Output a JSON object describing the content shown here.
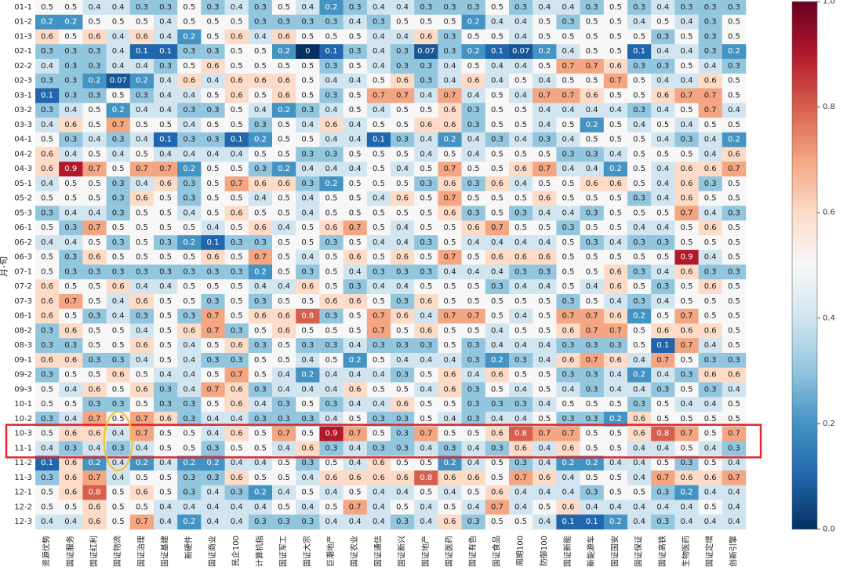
{
  "chart_data": {
    "type": "heatmap",
    "ylabel": "月-旬",
    "xlabel": "",
    "rows": [
      "01-1",
      "01-2",
      "01-3",
      "02-1",
      "02-2",
      "02-3",
      "03-1",
      "03-2",
      "03-3",
      "04-1",
      "04-2",
      "04-3",
      "05-1",
      "05-2",
      "05-3",
      "06-1",
      "06-2",
      "06-3",
      "07-1",
      "07-2",
      "07-3",
      "08-1",
      "08-2",
      "08-3",
      "09-1",
      "09-2",
      "09-3",
      "10-1",
      "10-2",
      "10-3",
      "11-1",
      "11-2",
      "11-3",
      "12-1",
      "12-2",
      "12-3"
    ],
    "columns": [
      "资源优势",
      "国证服务",
      "国证红利",
      "国证物流",
      "国证治理",
      "国证基建",
      "新硬件",
      "国证商业",
      "民企100",
      "计算机指",
      "国证军工",
      "国证大宗",
      "巨潮地产",
      "国证农业",
      "国证通信",
      "国证新兴",
      "国证地产",
      "国证医药",
      "国证有色",
      "国证食品",
      "周期100",
      "防御100",
      "国证新能",
      "新能源车",
      "国证国安",
      "国证保证",
      "国证高铁",
      "生物医药",
      "国证定增",
      "创新引擎"
    ],
    "values": [
      [
        0.5,
        0.5,
        0.4,
        0.4,
        0.3,
        0.3,
        0.5,
        0.3,
        0.4,
        0.3,
        0.5,
        0.4,
        0.2,
        0.3,
        0.4,
        0.4,
        0.3,
        0.3,
        0.3,
        0.5,
        0.3,
        0.4,
        0.4,
        0.3,
        0.5,
        0.3,
        0.4,
        0.3,
        0.3,
        0.3
      ],
      [
        0.2,
        0.2,
        0.5,
        0.5,
        0.5,
        0.4,
        0.5,
        0.5,
        0.5,
        0.3,
        0.3,
        0.3,
        0.3,
        0.4,
        0.3,
        0.5,
        0.5,
        0.5,
        0.2,
        0.4,
        0.4,
        0.5,
        0.3,
        0.5,
        0.5,
        0.4,
        0.5,
        0.4,
        0.3,
        0.5
      ],
      [
        0.6,
        0.5,
        0.6,
        0.4,
        0.6,
        0.4,
        0.2,
        0.5,
        0.6,
        0.4,
        0.6,
        0.5,
        0.5,
        0.5,
        0.4,
        0.4,
        0.6,
        0.3,
        0.5,
        0.5,
        0.4,
        0.5,
        0.5,
        0.5,
        0.5,
        0.5,
        0.3,
        0.5,
        0.3,
        0.5
      ],
      [
        0.3,
        0.3,
        0.3,
        0.4,
        0.1,
        0.1,
        0.3,
        0.3,
        0.5,
        0.5,
        0.2,
        0.0,
        0.1,
        0.3,
        0.4,
        0.3,
        0.07,
        0.3,
        0.2,
        0.1,
        0.07,
        0.2,
        0.4,
        0.5,
        0.5,
        0.1,
        0.4,
        0.4,
        0.3,
        0.2
      ],
      [
        0.4,
        0.3,
        0.3,
        0.4,
        0.4,
        0.3,
        0.5,
        0.6,
        0.5,
        0.5,
        0.5,
        0.5,
        0.3,
        0.5,
        0.4,
        0.3,
        0.3,
        0.4,
        0.5,
        0.4,
        0.4,
        0.5,
        0.7,
        0.7,
        0.6,
        0.3,
        0.3,
        0.5,
        0.4,
        0.3
      ],
      [
        0.3,
        0.3,
        0.2,
        0.07,
        0.2,
        0.4,
        0.6,
        0.4,
        0.6,
        0.6,
        0.6,
        0.5,
        0.4,
        0.4,
        0.5,
        0.6,
        0.3,
        0.4,
        0.6,
        0.4,
        0.5,
        0.4,
        0.5,
        0.5,
        0.7,
        0.5,
        0.4,
        0.4,
        0.6,
        0.5
      ],
      [
        0.1,
        0.3,
        0.3,
        0.5,
        0.3,
        0.4,
        0.4,
        0.5,
        0.6,
        0.5,
        0.6,
        0.5,
        0.3,
        0.5,
        0.7,
        0.7,
        0.4,
        0.7,
        0.4,
        0.5,
        0.4,
        0.7,
        0.7,
        0.6,
        0.5,
        0.5,
        0.6,
        0.7,
        0.7,
        0.5
      ],
      [
        0.3,
        0.4,
        0.5,
        0.2,
        0.4,
        0.4,
        0.3,
        0.3,
        0.5,
        0.4,
        0.2,
        0.3,
        0.4,
        0.5,
        0.4,
        0.5,
        0.5,
        0.6,
        0.3,
        0.5,
        0.5,
        0.4,
        0.4,
        0.4,
        0.4,
        0.3,
        0.4,
        0.5,
        0.7,
        0.4
      ],
      [
        0.4,
        0.6,
        0.5,
        0.7,
        0.5,
        0.5,
        0.4,
        0.5,
        0.5,
        0.3,
        0.5,
        0.4,
        0.6,
        0.4,
        0.5,
        0.5,
        0.6,
        0.6,
        0.3,
        0.5,
        0.5,
        0.4,
        0.5,
        0.2,
        0.5,
        0.4,
        0.5,
        0.4,
        0.5,
        0.5
      ],
      [
        0.5,
        0.3,
        0.4,
        0.3,
        0.4,
        0.1,
        0.3,
        0.3,
        0.1,
        0.2,
        0.5,
        0.5,
        0.4,
        0.4,
        0.1,
        0.3,
        0.4,
        0.2,
        0.4,
        0.3,
        0.4,
        0.3,
        0.4,
        0.5,
        0.5,
        0.5,
        0.4,
        0.3,
        0.4,
        0.2
      ],
      [
        0.6,
        0.4,
        0.5,
        0.4,
        0.5,
        0.4,
        0.4,
        0.4,
        0.4,
        0.5,
        0.5,
        0.3,
        0.3,
        0.5,
        0.5,
        0.5,
        0.4,
        0.5,
        0.4,
        0.5,
        0.5,
        0.5,
        0.3,
        0.3,
        0.4,
        0.5,
        0.5,
        0.5,
        0.4,
        0.6
      ],
      [
        0.6,
        0.9,
        0.7,
        0.5,
        0.7,
        0.7,
        0.2,
        0.5,
        0.5,
        0.3,
        0.2,
        0.4,
        0.4,
        0.4,
        0.5,
        0.4,
        0.5,
        0.7,
        0.5,
        0.5,
        0.6,
        0.7,
        0.4,
        0.4,
        0.2,
        0.5,
        0.4,
        0.6,
        0.6,
        0.7
      ],
      [
        0.4,
        0.5,
        0.5,
        0.3,
        0.4,
        0.6,
        0.3,
        0.5,
        0.7,
        0.6,
        0.6,
        0.3,
        0.2,
        0.5,
        0.5,
        0.5,
        0.3,
        0.6,
        0.3,
        0.6,
        0.4,
        0.5,
        0.5,
        0.6,
        0.6,
        0.5,
        0.4,
        0.6,
        0.3,
        0.5
      ],
      [
        0.5,
        0.5,
        0.5,
        0.3,
        0.6,
        0.5,
        0.3,
        0.5,
        0.5,
        0.4,
        0.5,
        0.4,
        0.5,
        0.5,
        0.4,
        0.6,
        0.5,
        0.7,
        0.5,
        0.5,
        0.5,
        0.6,
        0.5,
        0.5,
        0.5,
        0.3,
        0.4,
        0.6,
        0.5,
        0.5
      ],
      [
        0.3,
        0.4,
        0.4,
        0.3,
        0.5,
        0.5,
        0.4,
        0.5,
        0.6,
        0.5,
        0.5,
        0.4,
        0.5,
        0.5,
        0.5,
        0.5,
        0.5,
        0.6,
        0.3,
        0.5,
        0.3,
        0.4,
        0.4,
        0.3,
        0.5,
        0.5,
        0.5,
        0.7,
        0.4,
        0.3
      ],
      [
        0.5,
        0.3,
        0.7,
        0.5,
        0.5,
        0.5,
        0.5,
        0.4,
        0.5,
        0.6,
        0.4,
        0.5,
        0.6,
        0.7,
        0.5,
        0.4,
        0.5,
        0.5,
        0.6,
        0.7,
        0.5,
        0.5,
        0.3,
        0.5,
        0.5,
        0.4,
        0.4,
        0.5,
        0.6,
        0.5
      ],
      [
        0.4,
        0.4,
        0.5,
        0.3,
        0.5,
        0.3,
        0.2,
        0.1,
        0.3,
        0.3,
        0.5,
        0.5,
        0.3,
        0.5,
        0.4,
        0.4,
        0.3,
        0.5,
        0.4,
        0.4,
        0.4,
        0.4,
        0.5,
        0.3,
        0.4,
        0.3,
        0.3,
        0.5,
        0.5,
        0.5
      ],
      [
        0.5,
        0.3,
        0.6,
        0.5,
        0.5,
        0.5,
        0.5,
        0.6,
        0.5,
        0.7,
        0.5,
        0.4,
        0.5,
        0.6,
        0.5,
        0.6,
        0.5,
        0.7,
        0.5,
        0.6,
        0.6,
        0.6,
        0.5,
        0.5,
        0.5,
        0.5,
        0.5,
        0.9,
        0.4,
        0.5
      ],
      [
        0.5,
        0.3,
        0.3,
        0.3,
        0.3,
        0.3,
        0.3,
        0.3,
        0.3,
        0.2,
        0.5,
        0.3,
        0.5,
        0.4,
        0.3,
        0.3,
        0.3,
        0.4,
        0.4,
        0.4,
        0.3,
        0.3,
        0.5,
        0.5,
        0.6,
        0.3,
        0.4,
        0.6,
        0.3,
        0.3
      ],
      [
        0.6,
        0.5,
        0.5,
        0.6,
        0.4,
        0.4,
        0.5,
        0.5,
        0.5,
        0.4,
        0.4,
        0.6,
        0.5,
        0.3,
        0.4,
        0.4,
        0.5,
        0.5,
        0.5,
        0.3,
        0.4,
        0.4,
        0.5,
        0.4,
        0.6,
        0.5,
        0.3,
        0.5,
        0.6,
        0.5
      ],
      [
        0.6,
        0.7,
        0.5,
        0.4,
        0.6,
        0.5,
        0.5,
        0.3,
        0.5,
        0.3,
        0.5,
        0.5,
        0.6,
        0.6,
        0.5,
        0.3,
        0.6,
        0.5,
        0.5,
        0.5,
        0.5,
        0.5,
        0.3,
        0.5,
        0.4,
        0.3,
        0.4,
        0.5,
        0.5,
        0.5
      ],
      [
        0.6,
        0.5,
        0.3,
        0.4,
        0.3,
        0.5,
        0.3,
        0.7,
        0.5,
        0.6,
        0.6,
        0.8,
        0.3,
        0.5,
        0.7,
        0.6,
        0.4,
        0.7,
        0.7,
        0.5,
        0.4,
        0.5,
        0.7,
        0.7,
        0.6,
        0.2,
        0.5,
        0.7,
        0.5,
        0.5
      ],
      [
        0.3,
        0.6,
        0.5,
        0.5,
        0.4,
        0.5,
        0.6,
        0.7,
        0.3,
        0.5,
        0.6,
        0.5,
        0.5,
        0.5,
        0.7,
        0.5,
        0.6,
        0.5,
        0.5,
        0.4,
        0.5,
        0.5,
        0.6,
        0.7,
        0.7,
        0.5,
        0.6,
        0.6,
        0.6,
        0.5
      ],
      [
        0.3,
        0.3,
        0.5,
        0.5,
        0.6,
        0.5,
        0.4,
        0.5,
        0.6,
        0.3,
        0.5,
        0.3,
        0.3,
        0.4,
        0.3,
        0.3,
        0.3,
        0.5,
        0.3,
        0.4,
        0.4,
        0.4,
        0.3,
        0.3,
        0.3,
        0.5,
        0.1,
        0.7,
        0.4,
        0.5
      ],
      [
        0.6,
        0.6,
        0.3,
        0.3,
        0.4,
        0.5,
        0.4,
        0.3,
        0.3,
        0.5,
        0.5,
        0.4,
        0.5,
        0.2,
        0.5,
        0.4,
        0.4,
        0.4,
        0.3,
        0.2,
        0.3,
        0.4,
        0.6,
        0.7,
        0.6,
        0.4,
        0.7,
        0.5,
        0.3,
        0.3
      ],
      [
        0.3,
        0.5,
        0.5,
        0.6,
        0.5,
        0.4,
        0.4,
        0.5,
        0.7,
        0.5,
        0.4,
        0.2,
        0.4,
        0.4,
        0.4,
        0.3,
        0.5,
        0.6,
        0.4,
        0.6,
        0.5,
        0.5,
        0.3,
        0.3,
        0.4,
        0.2,
        0.4,
        0.3,
        0.6,
        0.6
      ],
      [
        0.5,
        0.4,
        0.6,
        0.5,
        0.6,
        0.3,
        0.4,
        0.7,
        0.6,
        0.3,
        0.4,
        0.4,
        0.4,
        0.6,
        0.5,
        0.5,
        0.4,
        0.6,
        0.3,
        0.5,
        0.4,
        0.5,
        0.4,
        0.3,
        0.4,
        0.4,
        0.3,
        0.5,
        0.3,
        0.4
      ],
      [
        0.5,
        0.5,
        0.3,
        0.3,
        0.5,
        0.3,
        0.3,
        0.5,
        0.6,
        0.4,
        0.3,
        0.5,
        0.3,
        0.4,
        0.4,
        0.6,
        0.5,
        0.5,
        0.3,
        0.3,
        0.3,
        0.4,
        0.5,
        0.5,
        0.5,
        0.3,
        0.5,
        0.4,
        0.4,
        0.5
      ],
      [
        0.3,
        0.4,
        0.7,
        0.5,
        0.7,
        0.6,
        0.3,
        0.4,
        0.4,
        0.3,
        0.3,
        0.3,
        0.4,
        0.5,
        0.3,
        0.3,
        0.5,
        0.4,
        0.3,
        0.4,
        0.4,
        0.5,
        0.3,
        0.3,
        0.2,
        0.6,
        0.5,
        0.5,
        0.5,
        0.5
      ],
      [
        0.5,
        0.6,
        0.6,
        0.4,
        0.7,
        0.5,
        0.5,
        0.4,
        0.6,
        0.5,
        0.7,
        0.5,
        0.9,
        0.7,
        0.5,
        0.3,
        0.7,
        0.5,
        0.5,
        0.6,
        0.8,
        0.7,
        0.7,
        0.5,
        0.5,
        0.6,
        0.8,
        0.7,
        0.5,
        0.7
      ],
      [
        0.4,
        0.3,
        0.4,
        0.3,
        0.4,
        0.5,
        0.5,
        0.3,
        0.5,
        0.5,
        0.4,
        0.6,
        0.3,
        0.4,
        0.3,
        0.3,
        0.4,
        0.3,
        0.4,
        0.3,
        0.6,
        0.4,
        0.6,
        0.5,
        0.5,
        0.4,
        0.4,
        0.5,
        0.4,
        0.3
      ],
      [
        0.1,
        0.6,
        0.2,
        0.4,
        0.2,
        0.4,
        0.2,
        0.2,
        0.4,
        0.4,
        0.5,
        0.3,
        0.5,
        0.4,
        0.6,
        0.5,
        0.5,
        0.2,
        0.4,
        0.5,
        0.3,
        0.4,
        0.2,
        0.2,
        0.4,
        0.4,
        0.5,
        0.3,
        0.5,
        0.4
      ],
      [
        0.3,
        0.6,
        0.7,
        0.4,
        0.5,
        0.5,
        0.3,
        0.3,
        0.6,
        0.5,
        0.5,
        0.4,
        0.6,
        0.6,
        0.6,
        0.6,
        0.8,
        0.6,
        0.6,
        0.5,
        0.7,
        0.6,
        0.4,
        0.5,
        0.5,
        0.4,
        0.7,
        0.6,
        0.6,
        0.7
      ],
      [
        0.5,
        0.6,
        0.8,
        0.5,
        0.6,
        0.5,
        0.3,
        0.4,
        0.3,
        0.2,
        0.4,
        0.5,
        0.4,
        0.5,
        0.4,
        0.4,
        0.5,
        0.4,
        0.5,
        0.6,
        0.4,
        0.4,
        0.4,
        0.3,
        0.5,
        0.5,
        0.3,
        0.2,
        0.4,
        0.4
      ],
      [
        0.5,
        0.5,
        0.6,
        0.5,
        0.5,
        0.4,
        0.4,
        0.4,
        0.4,
        0.4,
        0.5,
        0.4,
        0.5,
        0.7,
        0.4,
        0.5,
        0.4,
        0.5,
        0.4,
        0.7,
        0.4,
        0.5,
        0.6,
        0.4,
        0.4,
        0.4,
        0.4,
        0.4,
        0.5,
        0.4
      ],
      [
        0.4,
        0.4,
        0.6,
        0.5,
        0.7,
        0.4,
        0.2,
        0.4,
        0.4,
        0.3,
        0.3,
        0.3,
        0.4,
        0.4,
        0.4,
        0.3,
        0.4,
        0.6,
        0.3,
        0.5,
        0.5,
        0.4,
        0.1,
        0.1,
        0.2,
        0.4,
        0.3,
        0.4,
        0.4,
        0.4
      ]
    ],
    "vmin": 0.0,
    "vmax": 1.0,
    "colormap": "RdBu_r",
    "colorbar_ticks": [
      "0.0",
      "0.2",
      "0.4",
      "0.6",
      "0.8",
      "1.0"
    ],
    "highlight_rect_color": "#e0282e",
    "highlight_ellipse_color": "#f1c232"
  }
}
